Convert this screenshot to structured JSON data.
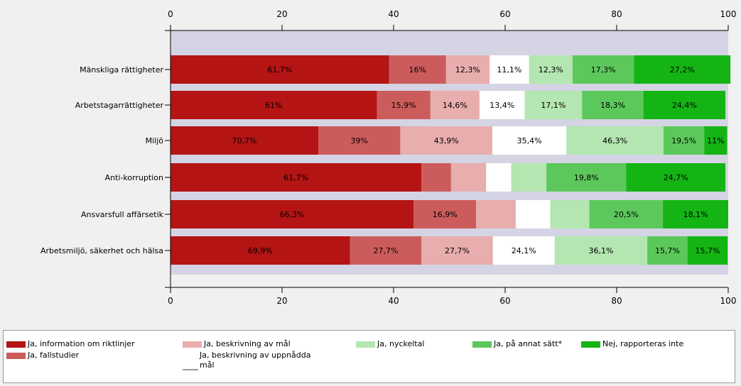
{
  "chart_data": {
    "type": "bar",
    "orientation": "horizontal",
    "stacked": true,
    "xlim": [
      0,
      100
    ],
    "x_ticks": [
      "0",
      "20",
      "40",
      "60",
      "80",
      "100"
    ],
    "categories": [
      "Mänskliga rättigheter",
      "Arbetstagarrättigheter",
      "Miljö",
      "Anti-korruption",
      "Ansvarsfull affärsetik",
      "Arbetsmiljö, säkerhet och hälsa"
    ],
    "series": [
      {
        "name": "Ja, information om riktlinjer",
        "color": "#b41414",
        "text_color": "#000000",
        "segments": [
          39.2,
          37.0,
          26.5,
          45.0,
          43.6,
          32.2
        ],
        "labels": [
          "61,7%",
          "61%",
          "70,7%",
          "61,7%",
          "66,3%",
          "69,9%"
        ]
      },
      {
        "name": "Ja, fallstudier",
        "color": "#cc5c5c",
        "text_color": "#000000",
        "segments": [
          10.2,
          9.6,
          14.7,
          5.3,
          11.2,
          12.8
        ],
        "labels": [
          "16%",
          "15,9%",
          "39%",
          "",
          "16,9%",
          "27,7%"
        ]
      },
      {
        "name": "Ja, beskrivning av mål",
        "color": "#e8adad",
        "text_color": "#000000",
        "segments": [
          7.8,
          8.8,
          16.5,
          6.3,
          7.1,
          12.8
        ],
        "labels": [
          "12,3%",
          "14,6%",
          "43,9%",
          "",
          "",
          "27,7%"
        ]
      },
      {
        "name": "Ja, beskrivning av uppnådda mål",
        "color": "#ffffff",
        "text_color": "#000000",
        "segments": [
          7.1,
          8.1,
          13.3,
          4.5,
          6.2,
          11.1
        ],
        "labels": [
          "11,1%",
          "13,4%",
          "35,4%",
          "",
          "",
          "24,1%"
        ]
      },
      {
        "name": "Ja, nyckeltal",
        "color": "#b3e6b0",
        "text_color": "#000000",
        "segments": [
          7.8,
          10.3,
          17.4,
          6.3,
          7.0,
          16.6
        ],
        "labels": [
          "12,3%",
          "17,1%",
          "46,3%",
          "",
          "",
          "36,1%"
        ]
      },
      {
        "name": "Ja, på annat sätt*",
        "color": "#5cc85c",
        "text_color": "#000000",
        "segments": [
          11.0,
          11.0,
          7.3,
          14.3,
          13.2,
          7.2
        ],
        "labels": [
          "17,3%",
          "18,3%",
          "19,5%",
          "19,8%",
          "20,5%",
          "15,7%"
        ]
      },
      {
        "name": "Nej, rapporteras inte",
        "color": "#14b414",
        "text_color": "#000000",
        "segments": [
          17.3,
          14.7,
          4.1,
          17.8,
          11.7,
          7.2
        ],
        "labels": [
          "27,2%",
          "24,4%",
          "11%",
          "24,7%",
          "18,1%",
          "15,7%"
        ]
      }
    ]
  }
}
